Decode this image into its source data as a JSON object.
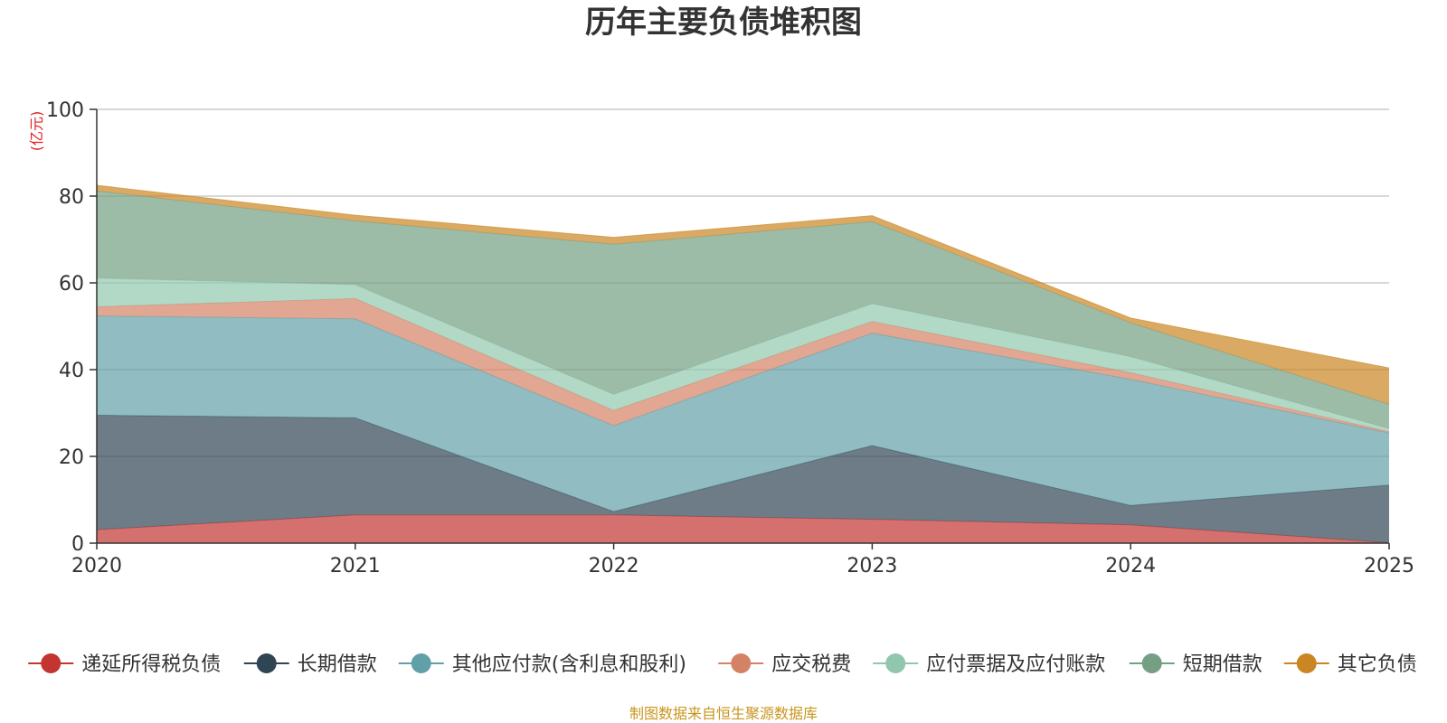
{
  "chart_data": {
    "type": "area",
    "stacked": true,
    "title": "历年主要负债堆积图",
    "unit_label": "(亿元)",
    "x": [
      "2020",
      "2021",
      "2022",
      "2023",
      "2024",
      "2025"
    ],
    "ylim": [
      0,
      100
    ],
    "yticks": [
      0,
      20,
      40,
      60,
      80,
      100
    ],
    "grid": true,
    "legend_position": "bottom",
    "series": [
      {
        "name": "递延所得税负债",
        "values": [
          3.1,
          6.5,
          6.5,
          5.5,
          4.2,
          0.1
        ],
        "color": "#c23531"
      },
      {
        "name": "长期借款",
        "values": [
          26.4,
          22.4,
          0.8,
          17.0,
          4.5,
          13.3
        ],
        "color": "#2f4554"
      },
      {
        "name": "其他应付款(含利息和股利)",
        "values": [
          22.9,
          22.8,
          19.8,
          25.9,
          29.1,
          12.0
        ],
        "color": "#61a0a8"
      },
      {
        "name": "应交税费",
        "values": [
          2.1,
          4.7,
          3.5,
          2.7,
          1.5,
          0.3
        ],
        "color": "#d48265"
      },
      {
        "name": "应付票据及应付账款",
        "values": [
          6.6,
          3.2,
          3.7,
          4.1,
          3.7,
          0.7
        ],
        "color": "#91c7ae"
      },
      {
        "name": "短期借款",
        "values": [
          20.1,
          14.7,
          34.6,
          18.9,
          7.8,
          5.6
        ],
        "color": "#749f83"
      },
      {
        "name": "其它负债",
        "values": [
          1.3,
          1.3,
          1.6,
          1.4,
          1.1,
          8.4
        ],
        "color": "#ca8622"
      }
    ]
  },
  "footer": {
    "source_text": "制图数据来自恒生聚源数据库",
    "source_color": "#c8961e",
    "unit_color": "#e02020"
  }
}
